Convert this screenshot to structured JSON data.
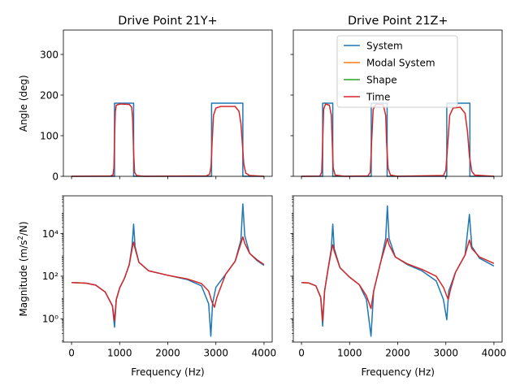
{
  "chart_data": {
    "type": "line",
    "layout": "2x2",
    "series_colors": {
      "System": "#1f77b4",
      "Modal System": "#ff7f0e",
      "Shape": "#2ca02c",
      "Time": "#d62728"
    },
    "legend": {
      "entries": [
        "System",
        "Modal System",
        "Shape",
        "Time"
      ],
      "placement": "top-center of right upper panel"
    },
    "xlabel": "Frequency (Hz)",
    "xlim": [
      -170,
      4170
    ],
    "xticks": [
      0,
      1000,
      2000,
      3000,
      4000
    ],
    "xtick_labels": [
      "0",
      "1000",
      "2000",
      "3000",
      "4000"
    ],
    "angle_axis": {
      "ylabel": "Angle (deg)",
      "ylim": [
        0,
        360
      ],
      "yticks": [
        0,
        100,
        200,
        300
      ],
      "ytick_labels": [
        "0",
        "100",
        "200",
        "300"
      ]
    },
    "magnitude_axis": {
      "ylabel": "Magnitude (m/s²/N)",
      "scale": "log",
      "ylim": [
        0.08,
        600000
      ],
      "yticks": [
        1,
        100,
        10000
      ],
      "ytick_labels": [
        "10⁰",
        "10²",
        "10⁴"
      ]
    },
    "panels": [
      {
        "title": "Drive Point 21Y+",
        "angle": {
          "System": [
            [
              0,
              0
            ],
            [
              893,
              0
            ],
            [
              893,
              180
            ],
            [
              1290,
              180
            ],
            [
              1290,
              0
            ],
            [
              2910,
              0
            ],
            [
              2910,
              180
            ],
            [
              3560,
              180
            ],
            [
              3560,
              0
            ],
            [
              4000,
              0
            ]
          ],
          "Time": [
            [
              0,
              0
            ],
            [
              800,
              0.5
            ],
            [
              860,
              3
            ],
            [
              880,
              20
            ],
            [
              895,
              100
            ],
            [
              910,
              160
            ],
            [
              930,
              175
            ],
            [
              1000,
              178
            ],
            [
              1200,
              177
            ],
            [
              1250,
              170
            ],
            [
              1270,
              140
            ],
            [
              1290,
              60
            ],
            [
              1310,
              10
            ],
            [
              1350,
              2
            ],
            [
              1500,
              0
            ],
            [
              2800,
              1
            ],
            [
              2870,
              5
            ],
            [
              2900,
              25
            ],
            [
              2920,
              80
            ],
            [
              2950,
              150
            ],
            [
              3000,
              168
            ],
            [
              3100,
              172
            ],
            [
              3400,
              172
            ],
            [
              3480,
              160
            ],
            [
              3520,
              130
            ],
            [
              3550,
              80
            ],
            [
              3580,
              30
            ],
            [
              3620,
              8
            ],
            [
              3700,
              2
            ],
            [
              4000,
              0
            ]
          ]
        },
        "magnitude": {
          "System": [
            [
              0,
              50
            ],
            [
              300,
              47
            ],
            [
              500,
              38
            ],
            [
              700,
              18
            ],
            [
              850,
              4
            ],
            [
              893,
              0.4
            ],
            [
              930,
              8
            ],
            [
              1000,
              28
            ],
            [
              1100,
              80
            ],
            [
              1200,
              350
            ],
            [
              1260,
              3000
            ],
            [
              1290,
              28000
            ],
            [
              1320,
              2500
            ],
            [
              1400,
              450
            ],
            [
              1600,
              180
            ],
            [
              2000,
              110
            ],
            [
              2400,
              70
            ],
            [
              2700,
              35
            ],
            [
              2850,
              5
            ],
            [
              2895,
              0.15
            ],
            [
              2930,
              5
            ],
            [
              3000,
              30
            ],
            [
              3200,
              120
            ],
            [
              3400,
              500
            ],
            [
              3520,
              5000
            ],
            [
              3560,
              250000
            ],
            [
              3600,
              8000
            ],
            [
              3700,
              1200
            ],
            [
              3850,
              550
            ],
            [
              4000,
              320
            ]
          ],
          "Time": [
            [
              0,
              50
            ],
            [
              300,
              47
            ],
            [
              500,
              38
            ],
            [
              700,
              18
            ],
            [
              850,
              4
            ],
            [
              893,
              0.8
            ],
            [
              930,
              8
            ],
            [
              1000,
              28
            ],
            [
              1100,
              80
            ],
            [
              1200,
              350
            ],
            [
              1260,
              2000
            ],
            [
              1290,
              4000
            ],
            [
              1320,
              2000
            ],
            [
              1400,
              450
            ],
            [
              1600,
              180
            ],
            [
              2000,
              110
            ],
            [
              2400,
              75
            ],
            [
              2700,
              45
            ],
            [
              2850,
              20
            ],
            [
              2920,
              6
            ],
            [
              2970,
              3.5
            ],
            [
              3020,
              10
            ],
            [
              3200,
              120
            ],
            [
              3400,
              500
            ],
            [
              3520,
              3500
            ],
            [
              3560,
              7000
            ],
            [
              3600,
              3500
            ],
            [
              3700,
              1200
            ],
            [
              3850,
              600
            ],
            [
              4000,
              350
            ]
          ]
        }
      },
      {
        "title": "Drive Point 21Z+",
        "angle": {
          "System": [
            [
              0,
              0
            ],
            [
              440,
              0
            ],
            [
              440,
              180
            ],
            [
              650,
              180
            ],
            [
              650,
              0
            ],
            [
              1450,
              0
            ],
            [
              1450,
              180
            ],
            [
              1780,
              180
            ],
            [
              1780,
              0
            ],
            [
              3020,
              0
            ],
            [
              3020,
              180
            ],
            [
              3500,
              180
            ],
            [
              3500,
              0
            ],
            [
              4000,
              0
            ]
          ],
          "Time": [
            [
              0,
              0
            ],
            [
              380,
              0.5
            ],
            [
              420,
              10
            ],
            [
              440,
              80
            ],
            [
              460,
              165
            ],
            [
              500,
              178
            ],
            [
              580,
              175
            ],
            [
              620,
              150
            ],
            [
              640,
              80
            ],
            [
              660,
              20
            ],
            [
              700,
              3
            ],
            [
              900,
              0
            ],
            [
              1380,
              1
            ],
            [
              1430,
              10
            ],
            [
              1460,
              90
            ],
            [
              1490,
              165
            ],
            [
              1550,
              178
            ],
            [
              1700,
              176
            ],
            [
              1750,
              150
            ],
            [
              1770,
              80
            ],
            [
              1800,
              20
            ],
            [
              1850,
              3
            ],
            [
              2000,
              0
            ],
            [
              2950,
              2
            ],
            [
              3000,
              15
            ],
            [
              3040,
              80
            ],
            [
              3080,
              150
            ],
            [
              3150,
              168
            ],
            [
              3300,
              170
            ],
            [
              3400,
              155
            ],
            [
              3450,
              110
            ],
            [
              3490,
              50
            ],
            [
              3540,
              12
            ],
            [
              3600,
              3
            ],
            [
              4000,
              0
            ]
          ]
        },
        "magnitude": {
          "System": [
            [
              0,
              50
            ],
            [
              150,
              48
            ],
            [
              300,
              35
            ],
            [
              400,
              10
            ],
            [
              440,
              0.45
            ],
            [
              480,
              20
            ],
            [
              550,
              200
            ],
            [
              620,
              2000
            ],
            [
              650,
              28000
            ],
            [
              680,
              2000
            ],
            [
              800,
              250
            ],
            [
              1000,
              90
            ],
            [
              1200,
              40
            ],
            [
              1350,
              8
            ],
            [
              1445,
              0.15
            ],
            [
              1500,
              20
            ],
            [
              1650,
              500
            ],
            [
              1750,
              6000
            ],
            [
              1785,
              200000
            ],
            [
              1820,
              6000
            ],
            [
              1950,
              800
            ],
            [
              2200,
              350
            ],
            [
              2500,
              180
            ],
            [
              2800,
              60
            ],
            [
              2950,
              8
            ],
            [
              3020,
              0.9
            ],
            [
              3060,
              20
            ],
            [
              3200,
              150
            ],
            [
              3400,
              1000
            ],
            [
              3490,
              80000
            ],
            [
              3540,
              2500
            ],
            [
              3700,
              700
            ],
            [
              4000,
              300
            ]
          ],
          "Time": [
            [
              0,
              50
            ],
            [
              150,
              48
            ],
            [
              300,
              35
            ],
            [
              400,
              10
            ],
            [
              440,
              0.8
            ],
            [
              480,
              20
            ],
            [
              550,
              200
            ],
            [
              620,
              1500
            ],
            [
              650,
              3000
            ],
            [
              680,
              1500
            ],
            [
              800,
              250
            ],
            [
              1000,
              90
            ],
            [
              1200,
              40
            ],
            [
              1350,
              12
            ],
            [
              1445,
              3
            ],
            [
              1500,
              20
            ],
            [
              1650,
              500
            ],
            [
              1750,
              3000
            ],
            [
              1785,
              6000
            ],
            [
              1820,
              3000
            ],
            [
              1950,
              800
            ],
            [
              2200,
              380
            ],
            [
              2500,
              210
            ],
            [
              2800,
              100
            ],
            [
              2950,
              30
            ],
            [
              3050,
              8
            ],
            [
              3100,
              25
            ],
            [
              3200,
              150
            ],
            [
              3400,
              1000
            ],
            [
              3490,
              5000
            ],
            [
              3540,
              2000
            ],
            [
              3700,
              800
            ],
            [
              4000,
              400
            ]
          ]
        }
      }
    ]
  }
}
